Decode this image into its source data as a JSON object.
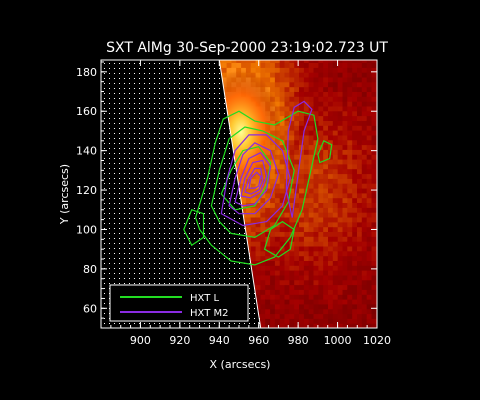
{
  "chart_data": {
    "type": "heatmap",
    "title": "SXT AlMg 30-Sep-2000 23:19:02.723 UT",
    "xlabel": "X (arcsecs)",
    "ylabel": "Y (arcsecs)",
    "xlim": [
      880,
      1020
    ],
    "ylim": [
      50,
      186
    ],
    "xticks": [
      900,
      920,
      940,
      960,
      980,
      1000,
      1020
    ],
    "yticks": [
      60,
      80,
      100,
      120,
      140,
      160,
      180
    ],
    "limb": {
      "description": "dotted off-disk region left of solar limb",
      "x_at_ymax": 940,
      "x_at_ymin": 961
    },
    "image_peak": {
      "x": 950,
      "y": 150
    },
    "contours": [
      {
        "name": "HXT L",
        "color": "#22dd22",
        "levels": [
          [
            [
              928,
              106
            ],
            [
              934,
              126
            ],
            [
              938,
              144
            ],
            [
              942,
              156
            ],
            [
              950,
              160
            ],
            [
              958,
              155
            ],
            [
              968,
              153
            ],
            [
              980,
              160
            ],
            [
              988,
              158
            ],
            [
              990,
              146
            ],
            [
              986,
              128
            ],
            [
              982,
              110
            ],
            [
              976,
              96
            ],
            [
              968,
              86
            ],
            [
              958,
              82
            ],
            [
              946,
              84
            ],
            [
              936,
              92
            ],
            [
              930,
              100
            ]
          ],
          [
            [
              936,
              112
            ],
            [
              940,
              130
            ],
            [
              945,
              146
            ],
            [
              953,
              152
            ],
            [
              962,
              150
            ],
            [
              972,
              145
            ],
            [
              978,
              130
            ],
            [
              975,
              114
            ],
            [
              968,
              102
            ],
            [
              958,
              96
            ],
            [
              946,
              98
            ],
            [
              940,
              104
            ]
          ],
          [
            [
              922,
              100
            ],
            [
              926,
              110
            ],
            [
              932,
              108
            ],
            [
              932,
              96
            ],
            [
              926,
              92
            ]
          ],
          [
            [
              963,
              90
            ],
            [
              966,
              100
            ],
            [
              972,
              104
            ],
            [
              978,
              100
            ],
            [
              976,
              90
            ],
            [
              970,
              86
            ]
          ],
          [
            [
              990,
              138
            ],
            [
              993,
              145
            ],
            [
              997,
              143
            ],
            [
              996,
              136
            ],
            [
              991,
              134
            ]
          ],
          [
            [
              941,
              118
            ],
            [
              946,
              130
            ],
            [
              952,
              140
            ],
            [
              960,
              142
            ],
            [
              966,
              134
            ],
            [
              964,
              122
            ],
            [
              958,
              112
            ],
            [
              948,
              110
            ]
          ]
        ]
      },
      {
        "name": "HXT M2",
        "color": "#8a2be2",
        "levels": [
          [
            [
              941,
              108
            ],
            [
              944,
              126
            ],
            [
              948,
              140
            ],
            [
              955,
              148
            ],
            [
              964,
              148
            ],
            [
              972,
              140
            ],
            [
              976,
              126
            ],
            [
              972,
              112
            ],
            [
              964,
              104
            ],
            [
              952,
              102
            ]
          ],
          [
            [
              945,
              112
            ],
            [
              948,
              126
            ],
            [
              952,
              138
            ],
            [
              958,
              144
            ],
            [
              966,
              140
            ],
            [
              970,
              128
            ],
            [
              966,
              116
            ],
            [
              958,
              108
            ],
            [
              950,
              108
            ]
          ],
          [
            [
              948,
              114
            ],
            [
              951,
              126
            ],
            [
              955,
              136
            ],
            [
              961,
              139
            ],
            [
              966,
              132
            ],
            [
              964,
              120
            ],
            [
              958,
              113
            ],
            [
              952,
              112
            ]
          ],
          [
            [
              951,
              117
            ],
            [
              953,
              126
            ],
            [
              957,
              134
            ],
            [
              962,
              135
            ],
            [
              964,
              127
            ],
            [
              961,
              119
            ],
            [
              956,
              116
            ]
          ],
          [
            [
              953,
              119
            ],
            [
              955,
              126
            ],
            [
              958,
              131
            ],
            [
              961,
              131
            ],
            [
              962,
              125
            ],
            [
              960,
              120
            ],
            [
              956,
              118
            ]
          ],
          [
            [
              955,
              121
            ],
            [
              956,
              126
            ],
            [
              959,
              129
            ],
            [
              961,
              127
            ],
            [
              960,
              122
            ],
            [
              958,
              121
            ]
          ],
          [
            [
              977,
              106
            ],
            [
              983,
              150
            ],
            [
              987,
              161
            ],
            [
              983,
              165
            ],
            [
              978,
              162
            ],
            [
              975,
              150
            ],
            [
              974,
              120
            ]
          ]
        ]
      }
    ],
    "legend": {
      "placement": "bottom-left",
      "entries": [
        {
          "label": "HXT L",
          "color": "#22dd22"
        },
        {
          "label": "HXT M2",
          "color": "#8a2be2"
        }
      ]
    }
  }
}
